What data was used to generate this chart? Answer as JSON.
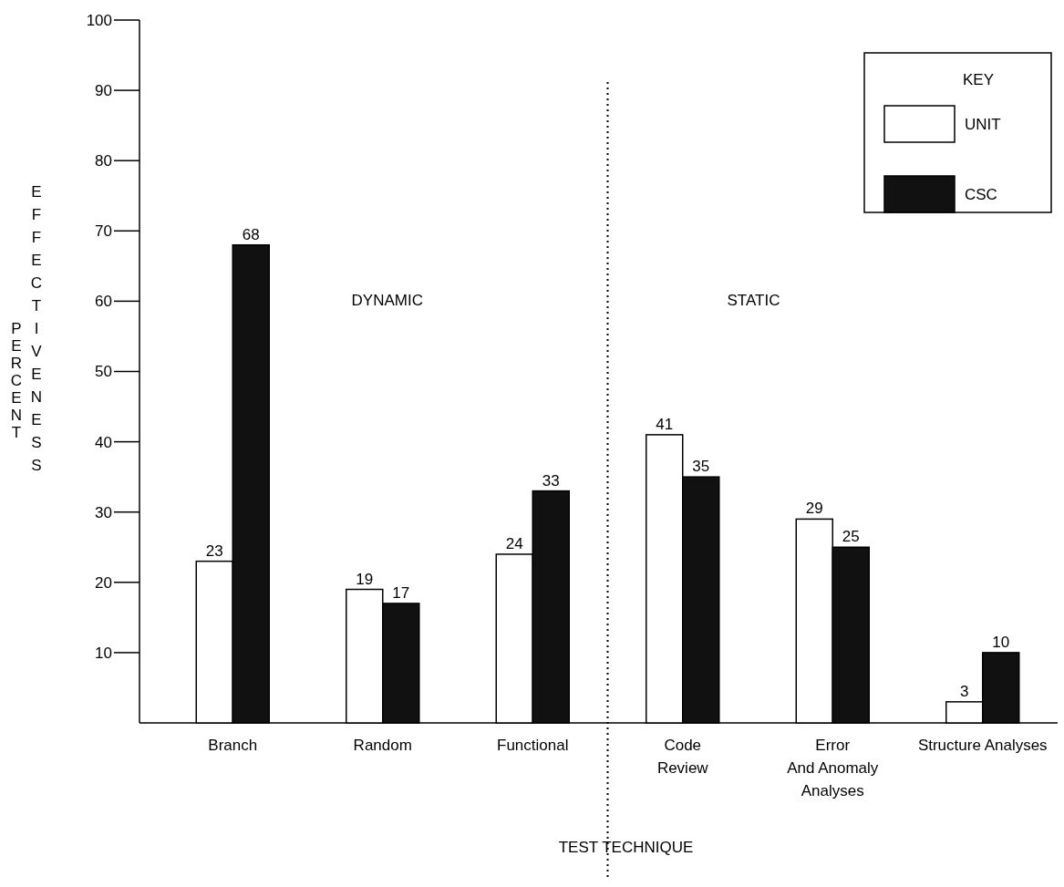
{
  "chart_data": {
    "type": "bar",
    "xlabel": "TEST TECHNIQUE",
    "ylabel": "PERCENT EFFECTIVENESS",
    "legend_title": "KEY",
    "legend": "top right",
    "grid": false,
    "data_labels": true,
    "categories": [
      "Branch",
      "Random",
      "Functional",
      "Code\nReview",
      "Error\nAnd Anomaly\nAnalyses",
      "Structure Analyses"
    ],
    "series": [
      {
        "name": "UNIT",
        "color": "#ffffff",
        "values": [
          23,
          19,
          24,
          41,
          29,
          3
        ]
      },
      {
        "name": "CSC",
        "color": "#111111",
        "values": [
          68,
          17,
          33,
          35,
          25,
          10
        ]
      }
    ],
    "ylim": [
      0,
      100
    ],
    "yticks": [
      10,
      20,
      30,
      40,
      50,
      60,
      70,
      80,
      90,
      100
    ],
    "annotations": [
      "DYNAMIC",
      "STATIC"
    ]
  }
}
